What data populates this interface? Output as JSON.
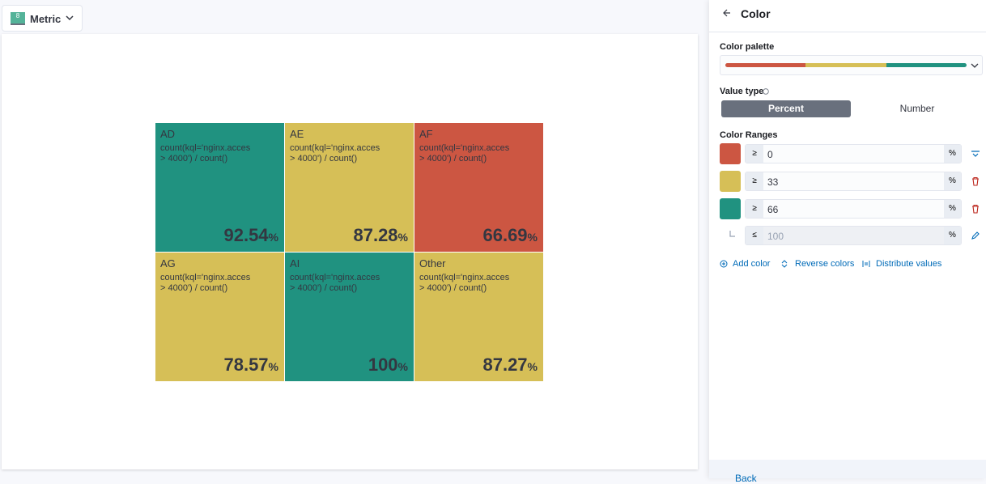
{
  "toolbar": {
    "icon_label": "8",
    "visualization": "Metric"
  },
  "metrics": [
    {
      "title": "AD",
      "subtitle_lines": [
        "count(kql='nginx.acces",
        "> 4000') / count()"
      ],
      "value": 92.54,
      "unit": "%",
      "color": "#209280"
    },
    {
      "title": "AE",
      "subtitle_lines": [
        "count(kql='nginx.acces",
        "> 4000') / count()"
      ],
      "value": 87.28,
      "unit": "%",
      "color": "#d6bf57"
    },
    {
      "title": "AF",
      "subtitle_lines": [
        "count(kql='nginx.acces",
        "> 4000') / count()"
      ],
      "value": 66.69,
      "unit": "%",
      "color": "#cc5642"
    },
    {
      "title": "AG",
      "subtitle_lines": [
        "count(kql='nginx.acces",
        "> 4000') / count()"
      ],
      "value": 78.57,
      "unit": "%",
      "color": "#d6bf57"
    },
    {
      "title": "AI",
      "subtitle_lines": [
        "count(kql='nginx.acces",
        "> 4000') / count()"
      ],
      "value": 100,
      "unit": "%",
      "color": "#209280"
    },
    {
      "title": "Other",
      "subtitle_lines": [
        "count(kql='nginx.acces",
        "> 4000') / count()"
      ],
      "value": 87.27,
      "unit": "%",
      "color": "#d6bf57"
    }
  ],
  "panel": {
    "title": "Color",
    "palette_label": "Color palette",
    "value_type_label": "Value type",
    "value_type_options": [
      "Percent",
      "Number"
    ],
    "color_ranges_label": "Color Ranges",
    "ranges": [
      {
        "operator": "≥",
        "value": 0,
        "unit": "%",
        "color": "#cc5642"
      },
      {
        "operator": "≥",
        "value": 33,
        "unit": "%",
        "color": "#d6bf57"
      },
      {
        "operator": "≥",
        "value": 66,
        "unit": "%",
        "color": "#209280"
      }
    ],
    "end": {
      "operator": "≤",
      "value": 100,
      "unit": "%"
    },
    "actions": [
      "Add color",
      "Reverse colors",
      "Distribute values"
    ],
    "footer": "Back"
  }
}
